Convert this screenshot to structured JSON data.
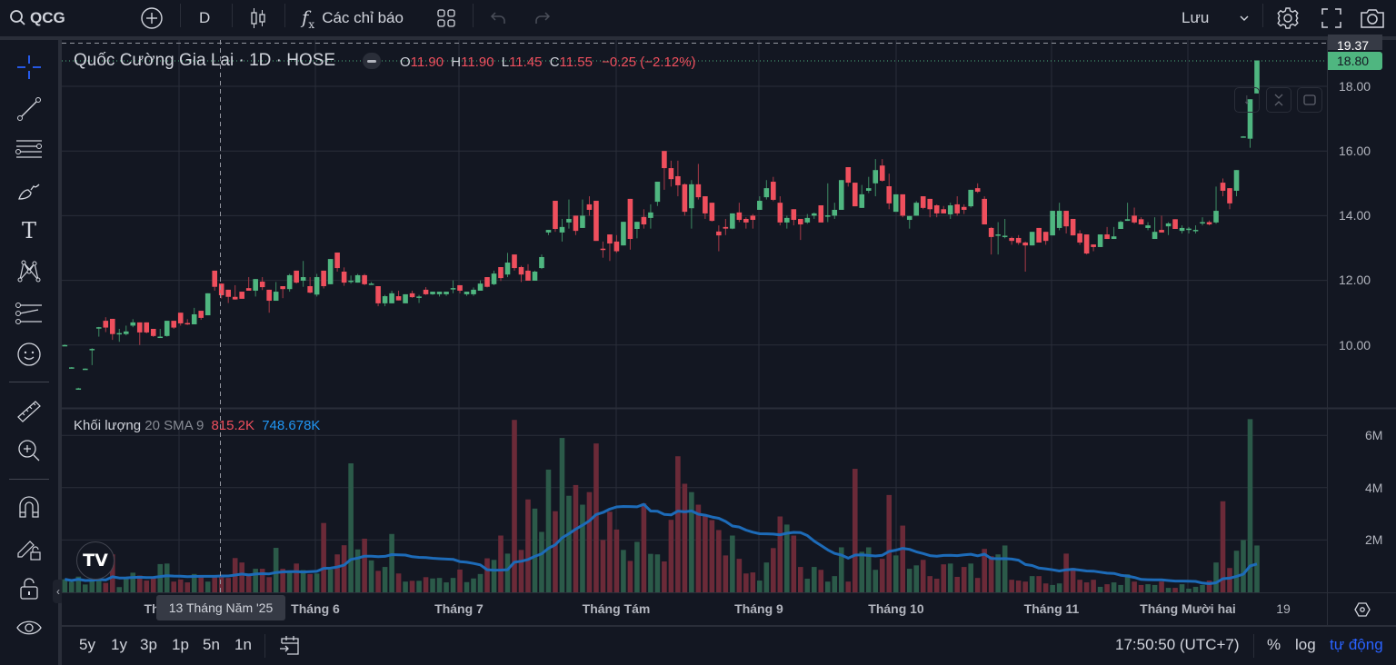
{
  "toolbar": {
    "symbol": "QCG",
    "interval": "D",
    "indicators_label": "Các chỉ báo",
    "save_label": "Lưu"
  },
  "legend": {
    "title": "Quốc Cường Gia Lai · 1D · HOSE",
    "o_label": "O",
    "o": "11.90",
    "h_label": "H",
    "h": "11.90",
    "l_label": "L",
    "l": "11.45",
    "c_label": "C",
    "c": "11.55",
    "change": "−0.25 (−2.12%)"
  },
  "volume_legend": {
    "label": "Khối lượng",
    "params": "20 SMA 9",
    "volume": "815.2K",
    "ma": "748.678K"
  },
  "price_axis": {
    "ticks": [
      "18.00",
      "16.00",
      "14.00",
      "12.00",
      "10.00"
    ],
    "crosshair_price": "19.37",
    "last_price": "18.80"
  },
  "volume_axis": {
    "ticks": [
      "6M",
      "4M",
      "2M"
    ]
  },
  "time_axis": {
    "partial_label": "Th",
    "crosshair_date": "13 Tháng Năm '25",
    "labels": [
      "Tháng 6",
      "Tháng 7",
      "Tháng Tám",
      "Tháng 9",
      "Tháng 10",
      "Tháng 11",
      "Tháng Mười hai",
      "19"
    ]
  },
  "bottom": {
    "ranges": [
      "5y",
      "1y",
      "3p",
      "1p",
      "5n",
      "1n"
    ],
    "clock": "17:50:50 (UTC+7)",
    "percent": "%",
    "log": "log",
    "auto": "tự động"
  },
  "colors": {
    "up": "#4fb680",
    "down": "#ef4f5d",
    "vol_up": "#2b5a49",
    "vol_down": "#6b2a38",
    "ma": "#1d6bb8",
    "accent": "#2962ff",
    "background": "#131722"
  },
  "chart_data": {
    "type": "candlestick",
    "symbol": "QCG",
    "ylim": [
      8.0,
      19.4
    ],
    "volume_ylim": [
      0,
      7
    ],
    "volume_ma_length": 20,
    "ohlc": [
      [
        9.98,
        10.02,
        9.98,
        10.0
      ],
      [
        9.3,
        9.32,
        9.28,
        9.31
      ],
      [
        8.64,
        8.68,
        8.62,
        8.66
      ],
      [
        9.25,
        9.28,
        9.24,
        9.27
      ],
      [
        9.85,
        9.9,
        9.38,
        9.88
      ],
      [
        10.53,
        10.56,
        10.26,
        10.55
      ],
      [
        10.75,
        10.86,
        10.4,
        10.54
      ],
      [
        10.81,
        10.81,
        10.16,
        10.34
      ],
      [
        10.36,
        10.5,
        10.1,
        10.37
      ],
      [
        10.34,
        10.6,
        10.3,
        10.42
      ],
      [
        10.6,
        10.8,
        10.55,
        10.7
      ],
      [
        10.7,
        10.7,
        10.0,
        10.39
      ],
      [
        10.7,
        10.7,
        10.36,
        10.39
      ],
      [
        10.5,
        10.5,
        10.25,
        10.28
      ],
      [
        10.24,
        10.5,
        10.22,
        10.26
      ],
      [
        10.28,
        10.75,
        10.26,
        10.75
      ],
      [
        10.75,
        10.75,
        10.5,
        10.54
      ],
      [
        11.0,
        11.0,
        10.6,
        10.67
      ],
      [
        10.68,
        10.8,
        10.62,
        10.64
      ],
      [
        10.64,
        11.15,
        10.64,
        10.95
      ],
      [
        11.06,
        11.06,
        10.78,
        10.84
      ],
      [
        10.92,
        11.6,
        10.92,
        11.6
      ],
      [
        12.3,
        12.3,
        11.68,
        11.8
      ],
      [
        11.9,
        11.9,
        11.44,
        11.54
      ],
      [
        11.71,
        11.71,
        11.3,
        11.49
      ],
      [
        11.49,
        11.85,
        11.4,
        11.41
      ],
      [
        11.65,
        11.65,
        11.43,
        11.43
      ],
      [
        11.76,
        12.1,
        11.68,
        11.68
      ],
      [
        11.68,
        12.04,
        11.5,
        12.04
      ],
      [
        11.96,
        12.1,
        11.7,
        11.79
      ],
      [
        11.71,
        11.71,
        11.0,
        11.37
      ],
      [
        11.37,
        11.95,
        11.37,
        11.65
      ],
      [
        11.82,
        11.82,
        11.45,
        11.73
      ],
      [
        11.73,
        12.2,
        11.65,
        12.16
      ],
      [
        12.3,
        12.3,
        11.9,
        11.93
      ],
      [
        11.99,
        12.6,
        11.8,
        12.1
      ],
      [
        11.82,
        12.1,
        11.6,
        11.62
      ],
      [
        11.56,
        12.2,
        11.5,
        12.1
      ],
      [
        12.3,
        12.3,
        11.75,
        11.82
      ],
      [
        11.88,
        12.66,
        11.88,
        12.66
      ],
      [
        12.86,
        12.86,
        12.27,
        12.38
      ],
      [
        12.27,
        12.4,
        11.83,
        11.93
      ],
      [
        11.99,
        12.15,
        11.9,
        11.99
      ],
      [
        11.93,
        12.2,
        11.93,
        12.16
      ],
      [
        12.16,
        12.2,
        11.85,
        11.88
      ],
      [
        11.9,
        11.95,
        11.88,
        11.9
      ],
      [
        11.82,
        11.82,
        11.2,
        11.29
      ],
      [
        11.29,
        11.55,
        11.2,
        11.51
      ],
      [
        11.29,
        11.68,
        11.29,
        11.6
      ],
      [
        11.51,
        11.68,
        11.38,
        11.38
      ],
      [
        11.29,
        11.57,
        11.29,
        11.57
      ],
      [
        11.6,
        11.68,
        11.46,
        11.48
      ],
      [
        11.5,
        11.55,
        11.3,
        11.5
      ],
      [
        11.71,
        11.79,
        11.55,
        11.57
      ],
      [
        11.57,
        11.65,
        11.55,
        11.65
      ],
      [
        11.57,
        11.65,
        11.5,
        11.65
      ],
      [
        11.57,
        11.65,
        11.52,
        11.65
      ],
      [
        11.75,
        12.0,
        11.6,
        11.76
      ],
      [
        11.85,
        11.85,
        11.6,
        11.68
      ],
      [
        11.57,
        11.65,
        11.52,
        11.65
      ],
      [
        11.57,
        11.78,
        11.52,
        11.71
      ],
      [
        11.68,
        12.0,
        11.68,
        11.9
      ],
      [
        12.1,
        12.1,
        11.78,
        11.8
      ],
      [
        11.88,
        12.3,
        11.85,
        12.21
      ],
      [
        12.41,
        12.41,
        11.98,
        12.07
      ],
      [
        12.18,
        12.85,
        12.1,
        12.55
      ],
      [
        12.8,
        12.8,
        12.3,
        12.38
      ],
      [
        12.41,
        12.45,
        11.95,
        12.18
      ],
      [
        12.3,
        12.5,
        11.99,
        11.99
      ],
      [
        11.99,
        12.3,
        11.99,
        12.27
      ],
      [
        12.38,
        12.8,
        12.35,
        12.72
      ],
      [
        13.48,
        13.56,
        13.4,
        13.56
      ],
      [
        14.46,
        14.46,
        13.5,
        13.59
      ],
      [
        13.48,
        13.9,
        13.2,
        13.65
      ],
      [
        13.79,
        14.5,
        13.6,
        13.9
      ],
      [
        14.0,
        14.0,
        13.4,
        13.53
      ],
      [
        13.62,
        14.5,
        13.62,
        14.0
      ],
      [
        14.35,
        14.6,
        14.0,
        14.18
      ],
      [
        14.46,
        14.46,
        13.22,
        13.22
      ],
      [
        12.98,
        13.2,
        12.7,
        12.97
      ],
      [
        13.42,
        13.42,
        12.6,
        13.14
      ],
      [
        13.2,
        13.4,
        12.85,
        12.9
      ],
      [
        13.08,
        13.81,
        13.08,
        13.81
      ],
      [
        14.52,
        14.52,
        12.95,
        13.28
      ],
      [
        13.59,
        13.81,
        13.3,
        13.81
      ],
      [
        13.96,
        14.2,
        13.6,
        13.73
      ],
      [
        13.93,
        14.35,
        13.6,
        14.1
      ],
      [
        14.43,
        15.05,
        14.3,
        15.05
      ],
      [
        16.0,
        16.0,
        14.8,
        15.47
      ],
      [
        15.47,
        15.7,
        14.9,
        15.13
      ],
      [
        15.22,
        15.7,
        14.6,
        14.94
      ],
      [
        14.97,
        15.0,
        14.0,
        14.12
      ],
      [
        14.23,
        15.1,
        13.6,
        14.97
      ],
      [
        14.97,
        15.6,
        14.5,
        14.57
      ],
      [
        14.6,
        14.6,
        13.9,
        14.07
      ],
      [
        14.4,
        14.4,
        13.82,
        13.84
      ],
      [
        13.51,
        13.7,
        12.9,
        13.39
      ],
      [
        13.65,
        13.9,
        13.4,
        13.6
      ],
      [
        13.6,
        14.07,
        13.58,
        14.07
      ],
      [
        14.1,
        14.4,
        13.8,
        13.87
      ],
      [
        13.9,
        13.95,
        13.6,
        13.79
      ],
      [
        14.0,
        14.05,
        13.6,
        13.87
      ],
      [
        14.18,
        14.6,
        14.18,
        14.46
      ],
      [
        14.57,
        15.1,
        14.5,
        14.85
      ],
      [
        15.05,
        15.2,
        14.45,
        14.49
      ],
      [
        14.4,
        14.6,
        13.7,
        13.79
      ],
      [
        13.79,
        14.0,
        13.6,
        13.93
      ],
      [
        14.2,
        14.2,
        13.7,
        13.87
      ],
      [
        13.9,
        13.9,
        13.25,
        13.73
      ],
      [
        13.79,
        14.05,
        13.75,
        13.93
      ],
      [
        14.0,
        14.1,
        13.9,
        14.07
      ],
      [
        14.32,
        14.32,
        13.79,
        13.79
      ],
      [
        14.0,
        15.0,
        13.8,
        14.01
      ],
      [
        14.0,
        14.4,
        13.9,
        14.18
      ],
      [
        14.18,
        15.1,
        14.18,
        15.1
      ],
      [
        15.5,
        15.5,
        14.9,
        15.02
      ],
      [
        15.02,
        15.02,
        14.29,
        14.29
      ],
      [
        14.24,
        14.95,
        14.24,
        14.66
      ],
      [
        14.77,
        15.2,
        14.7,
        14.85
      ],
      [
        15.0,
        15.75,
        14.6,
        15.41
      ],
      [
        15.55,
        15.75,
        15.05,
        15.08
      ],
      [
        14.91,
        15.3,
        14.2,
        14.38
      ],
      [
        14.12,
        14.66,
        14.12,
        14.66
      ],
      [
        14.66,
        14.66,
        13.95,
        14.0
      ],
      [
        13.87,
        13.99,
        13.6,
        13.99
      ],
      [
        14.0,
        14.45,
        14.0,
        14.4
      ],
      [
        14.6,
        14.6,
        14.2,
        14.24
      ],
      [
        14.52,
        14.52,
        13.95,
        14.2
      ],
      [
        14.32,
        14.35,
        13.95,
        14.07
      ],
      [
        14.2,
        14.3,
        14.07,
        14.07
      ],
      [
        14.04,
        14.4,
        13.9,
        14.32
      ],
      [
        14.35,
        14.6,
        14.0,
        14.07
      ],
      [
        14.27,
        14.35,
        14.05,
        14.18
      ],
      [
        14.29,
        14.8,
        14.25,
        14.8
      ],
      [
        14.85,
        15.0,
        14.7,
        14.74
      ],
      [
        14.52,
        14.6,
        13.73,
        13.73
      ],
      [
        13.62,
        13.65,
        12.8,
        13.34
      ],
      [
        13.4,
        13.8,
        12.8,
        13.42
      ],
      [
        13.36,
        13.9,
        13.3,
        13.38
      ],
      [
        13.31,
        13.35,
        13.1,
        13.22
      ],
      [
        13.31,
        13.4,
        13.1,
        13.16
      ],
      [
        13.17,
        13.2,
        12.27,
        13.08
      ],
      [
        13.08,
        13.5,
        13.08,
        13.5
      ],
      [
        13.62,
        13.62,
        13.17,
        13.17
      ],
      [
        13.5,
        13.5,
        13.1,
        13.22
      ],
      [
        13.39,
        14.15,
        13.39,
        14.15
      ],
      [
        13.62,
        14.4,
        13.55,
        14.15
      ],
      [
        14.15,
        14.15,
        13.45,
        13.67
      ],
      [
        13.9,
        13.9,
        13.39,
        13.39
      ],
      [
        13.45,
        13.55,
        13.1,
        13.17
      ],
      [
        13.42,
        13.42,
        12.8,
        12.83
      ],
      [
        13.11,
        13.11,
        12.9,
        13.03
      ],
      [
        13.03,
        13.42,
        13.03,
        13.42
      ],
      [
        13.42,
        13.65,
        13.28,
        13.28
      ],
      [
        13.28,
        13.65,
        13.28,
        13.36
      ],
      [
        13.59,
        13.85,
        13.59,
        13.81
      ],
      [
        13.84,
        14.4,
        13.84,
        13.89
      ],
      [
        14.0,
        14.25,
        13.75,
        13.79
      ],
      [
        13.89,
        13.95,
        13.73,
        13.73
      ],
      [
        13.62,
        13.8,
        13.55,
        13.7
      ],
      [
        13.28,
        13.95,
        13.28,
        13.5
      ],
      [
        13.56,
        14.0,
        13.48,
        13.48
      ],
      [
        13.67,
        13.8,
        13.4,
        13.76
      ],
      [
        13.89,
        13.89,
        13.59,
        13.59
      ],
      [
        13.53,
        13.7,
        13.45,
        13.62
      ],
      [
        13.58,
        13.65,
        13.45,
        13.6
      ],
      [
        13.55,
        13.7,
        13.45,
        13.56
      ],
      [
        13.78,
        13.95,
        13.7,
        13.8
      ],
      [
        13.8,
        13.85,
        13.7,
        13.73
      ],
      [
        13.79,
        14.9,
        13.75,
        14.15
      ],
      [
        15.02,
        15.15,
        14.6,
        14.77
      ],
      [
        14.85,
        14.85,
        14.2,
        14.38
      ],
      [
        14.77,
        15.41,
        14.6,
        15.41
      ],
      [
        16.44,
        16.46,
        16.43,
        16.45
      ],
      [
        16.38,
        17.6,
        16.1,
        17.6
      ],
      [
        17.78,
        18.8,
        17.78,
        18.8
      ]
    ],
    "volume_millions": [
      0.5,
      0.4,
      0.6,
      0.3,
      0.5,
      0.64,
      0.36,
      1.45,
      0.2,
      0.58,
      0.75,
      0.64,
      0.45,
      0.6,
      1.08,
      1.1,
      0.41,
      0.49,
      0.38,
      0.7,
      0.58,
      0.41,
      0.58,
      0.58,
      0.55,
      1.31,
      1.14,
      0.72,
      0.9,
      0.9,
      0.58,
      1.7,
      0.9,
      0.76,
      1.1,
      0.85,
      0.7,
      0.72,
      2.65,
      0.87,
      1.45,
      1.8,
      4.93,
      1.64,
      2.05,
      1.22,
      0.82,
      0.97,
      2.23,
      0.72,
      0.41,
      0.44,
      0.44,
      0.58,
      0.53,
      0.55,
      0.38,
      0.55,
      0.87,
      0.39,
      0.53,
      0.7,
      1.3,
      1.24,
      2.17,
      1.48,
      6.59,
      1.62,
      3.55,
      3.2,
      2.31,
      4.69,
      3.1,
      5.9,
      3.69,
      4.1,
      3.35,
      3.83,
      5.69,
      2.0,
      3.08,
      2.4,
      1.62,
      1.2,
      1.93,
      3.4,
      1.47,
      1.45,
      1.18,
      2.77,
      5.2,
      4.15,
      3.83,
      3.35,
      2.93,
      2.76,
      2.38,
      1.41,
      2.17,
      1.28,
      0.72,
      0.76,
      0.45,
      1.14,
      1.69,
      2.9,
      2.59,
      2.17,
      0.97,
      0.52,
      0.97,
      0.86,
      0.41,
      0.62,
      1.72,
      0.41,
      4.72,
      1.55,
      1.72,
      0.86,
      1.28,
      3.72,
      1.41,
      2.55,
      0.9,
      1.03,
      1.24,
      0.62,
      0.52,
      1.07,
      1.1,
      0.59,
      0.97,
      1.1,
      0.55,
      1.66,
      1.38,
      1.45,
      1.79,
      0.48,
      0.45,
      0.41,
      0.62,
      0.62,
      0.34,
      0.28,
      0.34,
      1.48,
      0.93,
      0.48,
      0.38,
      0.48,
      0.21,
      0.31,
      0.38,
      0.28,
      0.69,
      0.41,
      0.28,
      0.31,
      0.28,
      0.41,
      0.17,
      0.17,
      0.31,
      0.14,
      0.21,
      0.28,
      0.45,
      1.14,
      3.48,
      0.93,
      1.59,
      2.0,
      6.62,
      1.79
    ]
  }
}
